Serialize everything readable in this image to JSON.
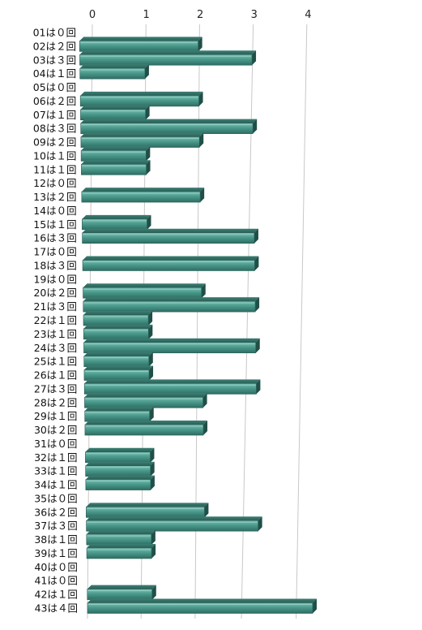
{
  "chart_data": {
    "type": "bar",
    "orientation": "horizontal",
    "style": "3d",
    "title": "",
    "xlabel": "",
    "ylabel": "",
    "xlim": [
      0,
      4
    ],
    "x_ticks": [
      "0",
      "1",
      "2",
      "3",
      "4"
    ],
    "grid": true,
    "legend": "none",
    "colors": {
      "bar_top": "#6fb1a6",
      "bar_front": "#3f8c7f",
      "bar_dark": "#1f4f47",
      "grid": "#c8c8c8"
    },
    "categories": [
      "01は０回",
      "02は２回",
      "03は３回",
      "04は１回",
      "05は０回",
      "06は２回",
      "07は１回",
      "08は３回",
      "09は２回",
      "10は１回",
      "11は１回",
      "12は０回",
      "13は２回",
      "14は０回",
      "15は１回",
      "16は３回",
      "17は０回",
      "18は３回",
      "19は０回",
      "20は２回",
      "21は３回",
      "22は１回",
      "23は１回",
      "24は３回",
      "25は１回",
      "26は１回",
      "27は３回",
      "28は２回",
      "29は１回",
      "30は２回",
      "31は０回",
      "32は１回",
      "33は１回",
      "34は１回",
      "35は０回",
      "36は２回",
      "37は３回",
      "38は１回",
      "39は１回",
      "40は０回",
      "41は０回",
      "42は１回",
      "43は４回"
    ],
    "values": [
      0,
      2,
      3,
      1,
      0,
      2,
      1,
      3,
      2,
      1,
      1,
      0,
      2,
      0,
      1,
      3,
      0,
      3,
      0,
      2,
      3,
      1,
      1,
      3,
      1,
      1,
      3,
      2,
      1,
      2,
      0,
      1,
      1,
      1,
      0,
      2,
      3,
      1,
      1,
      0,
      0,
      1,
      4
    ]
  }
}
